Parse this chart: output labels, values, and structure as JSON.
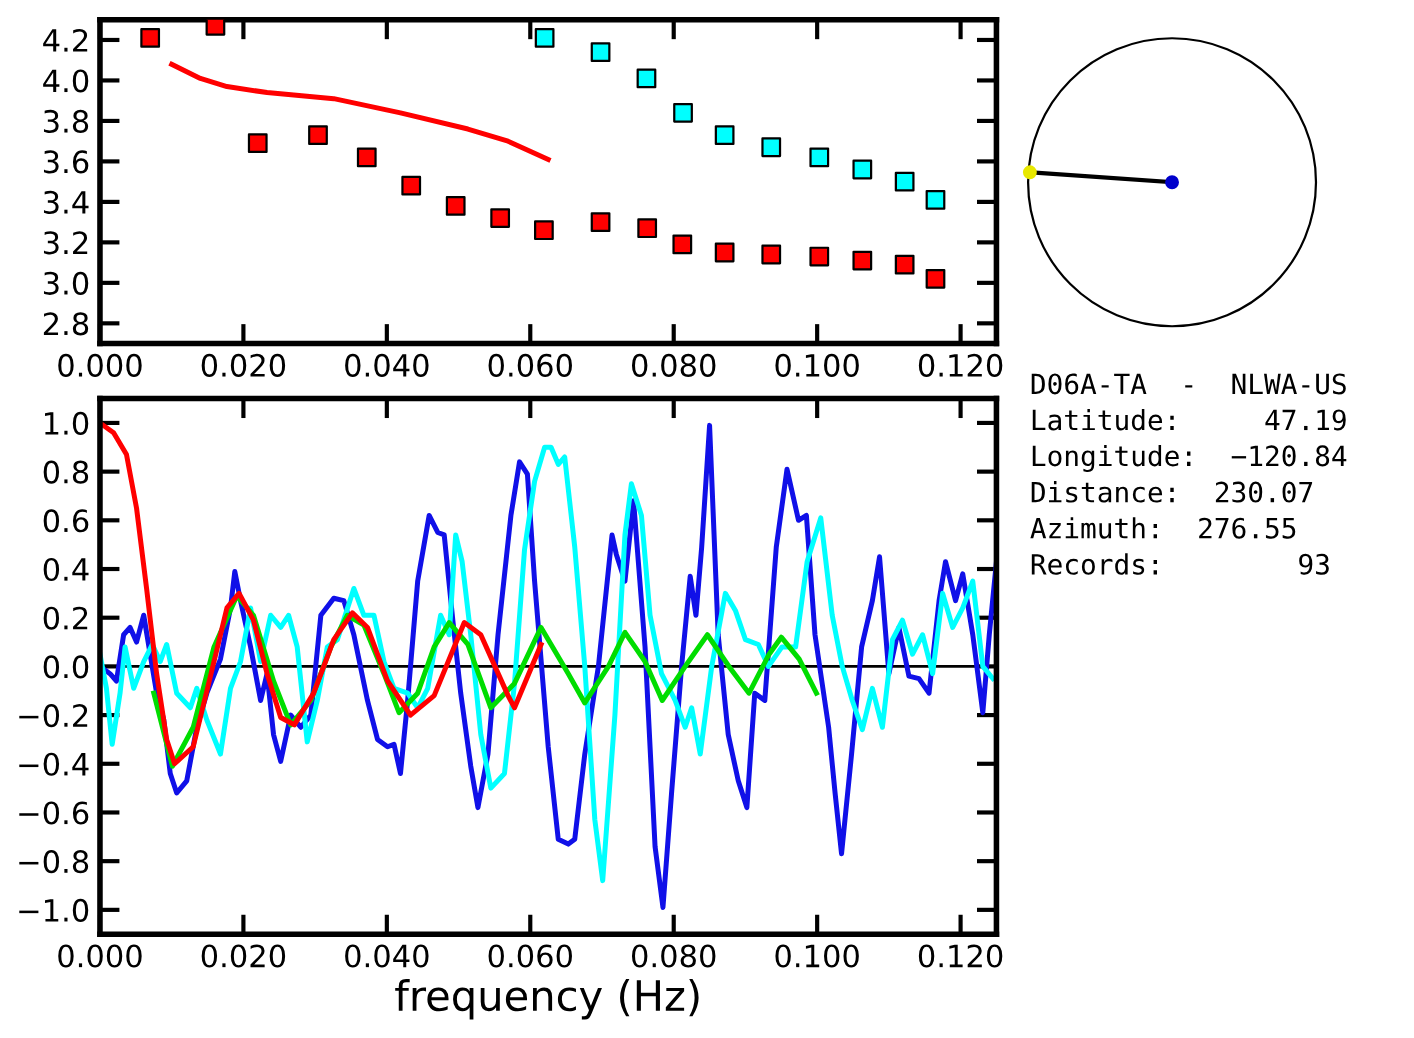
{
  "chart_data": [
    {
      "type": "scatter",
      "xlim": [
        0,
        0.125
      ],
      "ylim": [
        2.7,
        4.3
      ],
      "xticks": [
        {
          "value": 0,
          "label": "0.000"
        },
        {
          "value": 0.02,
          "label": "0.020"
        },
        {
          "value": 0.04,
          "label": "0.040"
        },
        {
          "value": 0.06,
          "label": "0.060"
        },
        {
          "value": 0.08,
          "label": "0.080"
        },
        {
          "value": 0.1,
          "label": "0.100"
        },
        {
          "value": 0.12,
          "label": "0.120"
        }
      ],
      "yticks": [
        2.8,
        {
          "value": 3,
          "label": "3.0"
        },
        3.2,
        3.4,
        3.6,
        3.8,
        {
          "value": 4,
          "label": "4.0"
        },
        4.2
      ],
      "series": [
        {
          "type": "scatter",
          "marker": "square",
          "color": "#ff0000",
          "x": [
            0.007,
            0.0161,
            0.022,
            0.0304,
            0.0372,
            0.0434,
            0.0496,
            0.0558,
            0.0619,
            0.0698,
            0.0763,
            0.0812,
            0.0871,
            0.0936,
            0.1003,
            0.1063,
            0.1122,
            0.1165
          ],
          "values": [
            4.21,
            4.27,
            3.69,
            3.73,
            3.62,
            3.48,
            3.38,
            3.32,
            3.26,
            3.3,
            3.27,
            3.19,
            3.15,
            3.14,
            3.13,
            3.11,
            3.09,
            3.02
          ]
        },
        {
          "type": "scatter",
          "marker": "square",
          "color": "#00ffff",
          "x": [
            0.062,
            0.0698,
            0.0762,
            0.0813,
            0.0871,
            0.0936,
            0.1003,
            0.1063,
            0.1122,
            0.1165
          ],
          "values": [
            4.21,
            4.14,
            4.01,
            3.84,
            3.73,
            3.67,
            3.62,
            3.56,
            3.5,
            3.41
          ]
        },
        {
          "type": "line",
          "color": "#ff0000",
          "x": [
            0.01,
            0.014,
            0.0177,
            0.0233,
            0.0326,
            0.0419,
            0.0513,
            0.0569,
            0.0625
          ],
          "values": [
            4.08,
            4.01,
            3.97,
            3.94,
            3.91,
            3.84,
            3.76,
            3.7,
            3.61
          ]
        }
      ]
    },
    {
      "type": "line",
      "xlabel": "frequency (Hz)",
      "xlim": [
        0,
        0.125
      ],
      "ylim": [
        -1.1,
        1.1
      ],
      "xticks": [
        {
          "value": 0,
          "label": "0.000"
        },
        {
          "value": 0.02,
          "label": "0.020"
        },
        {
          "value": 0.04,
          "label": "0.040"
        },
        {
          "value": 0.06,
          "label": "0.060"
        },
        {
          "value": 0.08,
          "label": "0.080"
        },
        {
          "value": 0.1,
          "label": "0.100"
        },
        {
          "value": 0.12,
          "label": "0.120"
        }
      ],
      "yticks": [
        {
          "value": -1.0,
          "label": "−1.0"
        },
        {
          "value": -0.8,
          "label": "−0.8"
        },
        {
          "value": -0.6,
          "label": "−0.6"
        },
        {
          "value": -0.4,
          "label": "−0.4"
        },
        {
          "value": -0.2,
          "label": "−0.2"
        },
        {
          "value": 0,
          "label": "0.0"
        },
        0.2,
        0.4,
        0.6,
        0.8,
        {
          "value": 1,
          "label": "1.0"
        }
      ],
      "ref_lines": [
        {
          "axis": "y",
          "value": 0,
          "color": "#000000"
        }
      ],
      "series": [
        {
          "color": "#1010e8",
          "x": [
            0,
            0.0014,
            0.0023,
            0.0033,
            0.0042,
            0.0051,
            0.0061,
            0.007,
            0.0079,
            0.0089,
            0.0098,
            0.0107,
            0.0121,
            0.0135,
            0.0149,
            0.0168,
            0.0182,
            0.0188,
            0.0196,
            0.021,
            0.0224,
            0.0233,
            0.0242,
            0.0252,
            0.0266,
            0.028,
            0.0294,
            0.0308,
            0.0326,
            0.034,
            0.0354,
            0.0373,
            0.0387,
            0.0401,
            0.041,
            0.0419,
            0.0429,
            0.0443,
            0.0459,
            0.0471,
            0.048,
            0.0492,
            0.0503,
            0.0517,
            0.0527,
            0.0541,
            0.0555,
            0.0573,
            0.0585,
            0.0596,
            0.0606,
            0.0625,
            0.0639,
            0.0653,
            0.0662,
            0.0676,
            0.0695,
            0.0714,
            0.072,
            0.0732,
            0.0744,
            0.076,
            0.0774,
            0.0785,
            0.0797,
            0.0811,
            0.0823,
            0.0831,
            0.0839,
            0.085,
            0.0862,
            0.0876,
            0.089,
            0.0902,
            0.0913,
            0.0927,
            0.0943,
            0.0958,
            0.0974,
            0.0985,
            0.0997,
            0.1016,
            0.1025,
            0.1034,
            0.1048,
            0.1062,
            0.1077,
            0.1087,
            0.11,
            0.1114,
            0.1128,
            0.1142,
            0.1156,
            0.117,
            0.1179,
            0.1193,
            0.1203,
            0.1217,
            0.1231,
            0.124,
            0.125
          ],
          "values": [
            0.0,
            -0.03,
            -0.06,
            0.13,
            0.16,
            0.1,
            0.21,
            0.05,
            -0.11,
            -0.22,
            -0.44,
            -0.52,
            -0.47,
            -0.25,
            -0.11,
            0.03,
            0.24,
            0.39,
            0.27,
            0.08,
            -0.14,
            -0.03,
            -0.28,
            -0.39,
            -0.2,
            -0.25,
            -0.2,
            0.21,
            0.28,
            0.27,
            0.13,
            -0.14,
            -0.3,
            -0.33,
            -0.32,
            -0.44,
            -0.14,
            0.35,
            0.62,
            0.55,
            0.54,
            0.19,
            -0.11,
            -0.41,
            -0.58,
            -0.36,
            0.13,
            0.62,
            0.84,
            0.79,
            0.35,
            -0.33,
            -0.71,
            -0.73,
            -0.71,
            -0.36,
            0.0,
            0.54,
            0.46,
            0.35,
            0.68,
            0.08,
            -0.74,
            -0.99,
            -0.52,
            0.0,
            0.37,
            0.21,
            0.49,
            0.99,
            0.13,
            -0.28,
            -0.47,
            -0.58,
            -0.11,
            -0.14,
            0.49,
            0.81,
            0.6,
            0.62,
            0.13,
            -0.25,
            -0.52,
            -0.77,
            -0.36,
            0.08,
            0.27,
            0.45,
            -0.03,
            0.16,
            -0.04,
            -0.05,
            -0.11,
            0.27,
            0.43,
            0.27,
            0.38,
            0.13,
            -0.19,
            0.13,
            0.43
          ]
        },
        {
          "color": "#00ffff",
          "x": [
            0,
            0.0009,
            0.0017,
            0.0028,
            0.0035,
            0.0047,
            0.0061,
            0.0073,
            0.0084,
            0.0093,
            0.0107,
            0.0126,
            0.0135,
            0.0149,
            0.0168,
            0.0182,
            0.0196,
            0.021,
            0.0224,
            0.0238,
            0.0252,
            0.0263,
            0.0275,
            0.0289,
            0.0303,
            0.0317,
            0.0331,
            0.0354,
            0.0368,
            0.0382,
            0.0396,
            0.041,
            0.0429,
            0.0443,
            0.0457,
            0.0475,
            0.0487,
            0.0496,
            0.0505,
            0.0517,
            0.0531,
            0.0545,
            0.0564,
            0.0578,
            0.0592,
            0.0606,
            0.062,
            0.0629,
            0.0639,
            0.0648,
            0.0662,
            0.0676,
            0.069,
            0.0701,
            0.0718,
            0.0732,
            0.0741,
            0.0755,
            0.0767,
            0.0783,
            0.0802,
            0.0816,
            0.0825,
            0.0837,
            0.0853,
            0.0872,
            0.0886,
            0.09,
            0.0918,
            0.0932,
            0.0951,
            0.097,
            0.0986,
            0.1005,
            0.1021,
            0.1035,
            0.1049,
            0.1063,
            0.1077,
            0.1091,
            0.1105,
            0.1119,
            0.1133,
            0.1147,
            0.1161,
            0.1175,
            0.1189,
            0.1203,
            0.1217,
            0.1231,
            0.1245
          ],
          "values": [
            0.05,
            -0.09,
            -0.32,
            -0.11,
            0.08,
            -0.09,
            0.02,
            0.09,
            0.02,
            0.09,
            -0.11,
            -0.17,
            -0.09,
            -0.22,
            -0.36,
            -0.09,
            0.02,
            0.24,
            0.02,
            0.21,
            0.16,
            0.21,
            0.08,
            -0.31,
            -0.14,
            0.08,
            0.11,
            0.32,
            0.21,
            0.21,
            0.02,
            -0.09,
            -0.11,
            -0.17,
            -0.09,
            0.21,
            0.13,
            0.54,
            0.43,
            0.13,
            -0.28,
            -0.5,
            -0.44,
            -0.07,
            0.48,
            0.76,
            0.9,
            0.9,
            0.83,
            0.86,
            0.49,
            0.0,
            -0.63,
            -0.88,
            -0.2,
            0.54,
            0.75,
            0.62,
            0.21,
            -0.03,
            -0.14,
            -0.25,
            -0.17,
            -0.36,
            0.0,
            0.3,
            0.23,
            0.11,
            0.09,
            0.0,
            0.08,
            0.08,
            0.43,
            0.61,
            0.21,
            0.0,
            -0.14,
            -0.26,
            -0.09,
            -0.25,
            0.11,
            0.19,
            0.05,
            0.13,
            -0.03,
            0.3,
            0.16,
            0.24,
            0.35,
            0.0,
            -0.05
          ]
        },
        {
          "color": "#00dd00",
          "x": [
            0.0075,
            0.0101,
            0.013,
            0.0159,
            0.0191,
            0.0214,
            0.0242,
            0.0266,
            0.0294,
            0.0322,
            0.0345,
            0.0368,
            0.0396,
            0.0417,
            0.0443,
            0.0466,
            0.0487,
            0.0513,
            0.0545,
            0.0578,
            0.0615,
            0.0653,
            0.0676,
            0.0709,
            0.0732,
            0.076,
            0.0784,
            0.0816,
            0.0847,
            0.0877,
            0.0905,
            0.0933,
            0.095,
            0.0975,
            0.0999
          ],
          "values": [
            -0.11,
            -0.41,
            -0.25,
            0.08,
            0.29,
            0.21,
            -0.06,
            -0.24,
            -0.14,
            0.08,
            0.21,
            0.17,
            -0.03,
            -0.19,
            -0.11,
            0.08,
            0.18,
            0.09,
            -0.17,
            -0.07,
            0.16,
            -0.03,
            -0.15,
            0.0,
            0.14,
            0.02,
            -0.14,
            0.0,
            0.13,
            0.0,
            -0.11,
            0.05,
            0.12,
            0.03,
            -0.11
          ]
        },
        {
          "color": "#ff0000",
          "x": [
            0,
            0.0019,
            0.0037,
            0.0051,
            0.0065,
            0.0079,
            0.0093,
            0.0104,
            0.013,
            0.0159,
            0.0177,
            0.0194,
            0.0214,
            0.0233,
            0.0252,
            0.0271,
            0.0298,
            0.0326,
            0.0352,
            0.0373,
            0.0401,
            0.0433,
            0.0466,
            0.0508,
            0.0531,
            0.0569,
            0.0578,
            0.0615
          ],
          "values": [
            1.0,
            0.96,
            0.87,
            0.65,
            0.32,
            -0.03,
            -0.3,
            -0.4,
            -0.33,
            0.02,
            0.24,
            0.3,
            0.19,
            -0.03,
            -0.21,
            -0.24,
            -0.11,
            0.11,
            0.22,
            0.16,
            -0.06,
            -0.2,
            -0.12,
            0.18,
            0.13,
            -0.12,
            -0.17,
            0.09
          ]
        }
      ]
    },
    {
      "type": "other",
      "annotations": [
        "D06A-TA  -  NLWA-US",
        "Latitude:     47.19",
        "Longitude:  −120.84",
        "Distance:  230.07",
        "Azimuth:  276.55",
        "Records:        93"
      ]
    }
  ]
}
